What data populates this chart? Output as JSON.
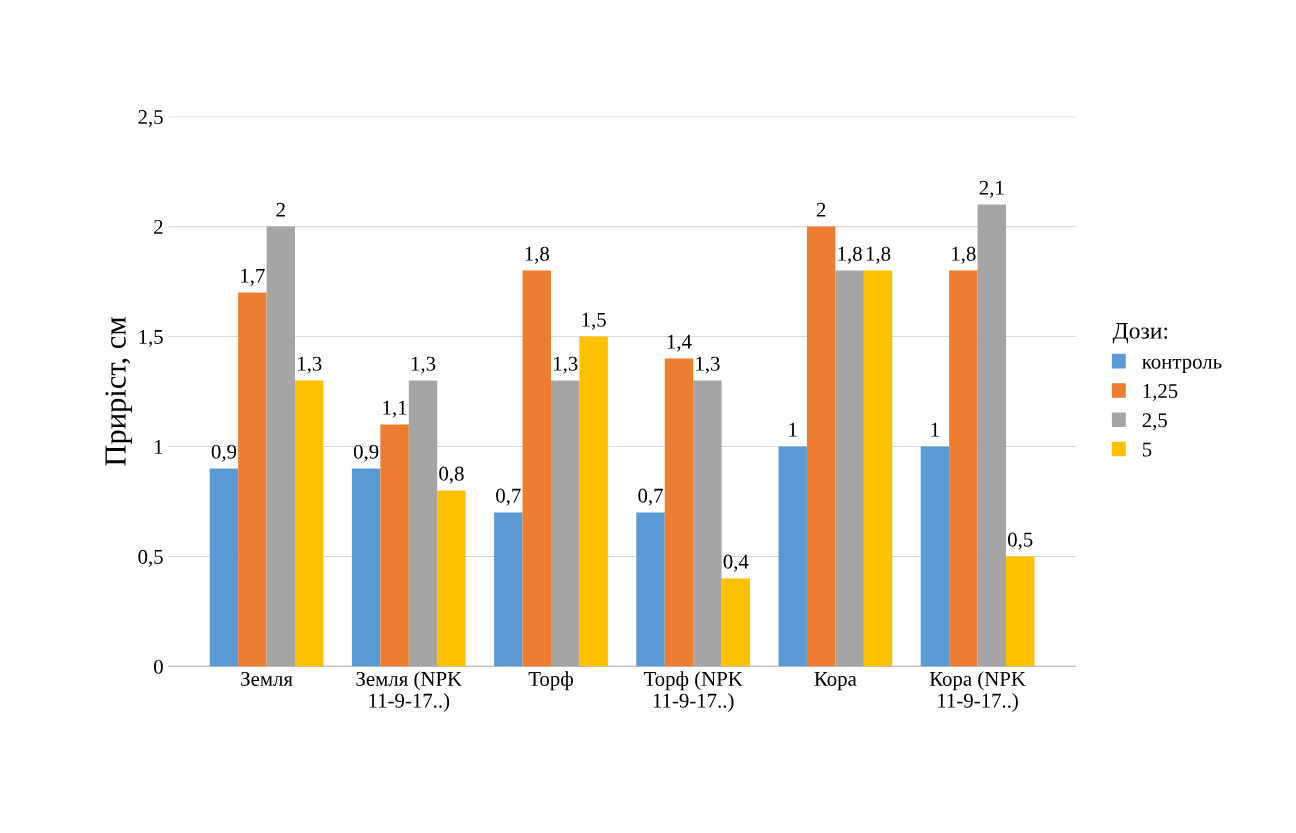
{
  "chart_data": {
    "type": "bar",
    "ylabel": "Приріст, см",
    "legend_title": "Дози:",
    "categories": [
      "Земля",
      "Земля (NPK\n11-9-17..)",
      "Торф",
      "Торф (NPK\n11-9-17..)",
      "Кора",
      "Кора (NPK\n11-9-17..)"
    ],
    "series": [
      {
        "name": "контроль",
        "color": "#5b9bd5",
        "values": [
          0.9,
          0.9,
          0.7,
          0.7,
          1,
          1
        ],
        "value_labels": [
          "0,9",
          "0,9",
          "0,7",
          "0,7",
          "1",
          "1"
        ]
      },
      {
        "name": "1,25",
        "color": "#ed7d31",
        "values": [
          1.7,
          1.1,
          1.8,
          1.4,
          2,
          1.8
        ],
        "value_labels": [
          "1,7",
          "1,1",
          "1,8",
          "1,4",
          "2",
          "1,8"
        ]
      },
      {
        "name": "2,5",
        "color": "#a5a5a5",
        "values": [
          2,
          1.3,
          1.3,
          1.3,
          1.8,
          2.1
        ],
        "value_labels": [
          "2",
          "1,3",
          "1,3",
          "1,3",
          "1,8",
          "2,1"
        ]
      },
      {
        "name": "5",
        "color": "#ffc000",
        "values": [
          1.3,
          0.8,
          1.5,
          0.4,
          1.8,
          0.5
        ],
        "value_labels": [
          "1,3",
          "0,8",
          "1,5",
          "0,4",
          "1,8",
          "0,5"
        ]
      }
    ],
    "ylim": [
      0,
      2.5
    ],
    "yticks": [
      {
        "value": 0,
        "label": "0"
      },
      {
        "value": 0.5,
        "label": "0,5"
      },
      {
        "value": 1,
        "label": "1"
      },
      {
        "value": 1.5,
        "label": "1,5"
      },
      {
        "value": 2,
        "label": "2"
      },
      {
        "value": 2.5,
        "label": "2,5"
      }
    ],
    "grid": "y",
    "legend": "right"
  }
}
